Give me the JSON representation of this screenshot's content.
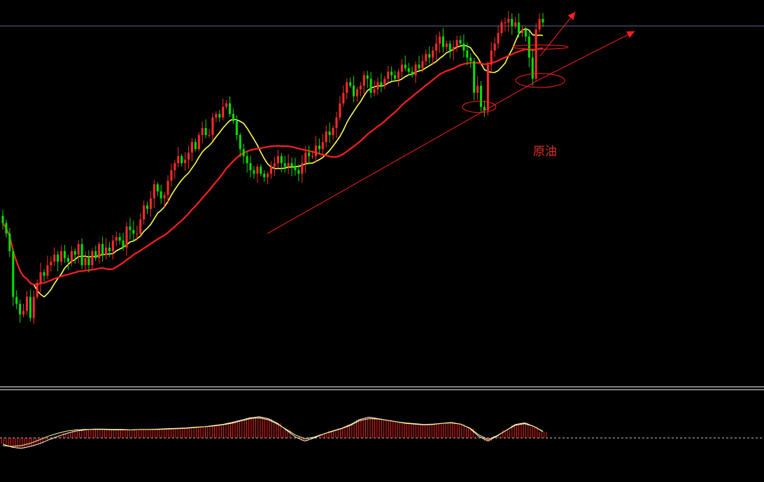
{
  "chart_data": {
    "type": "candlestick",
    "annotation": "原油",
    "colors": {
      "background": "#000000",
      "up": "#ff2a2a",
      "down": "#00e000",
      "ma_short": "#ffff55",
      "ma_long": "#ff2020",
      "annotation": "#e0302a",
      "separator": "#ffffff",
      "ref_line": "#5a6e8a",
      "indicator_line_a": "#ffffff",
      "indicator_line_b": "#ffff88",
      "indicator_bar": "#ff2020",
      "zero_line": "#cccccc"
    },
    "price_range": [
      0,
      100
    ],
    "ref_level": 97,
    "closes": [
      41,
      38,
      33,
      20,
      18,
      15,
      16,
      20,
      14,
      20,
      24,
      27,
      26,
      29,
      30,
      32,
      30,
      33,
      31,
      30,
      33,
      32,
      35,
      29,
      31,
      29,
      33,
      31,
      35,
      32,
      34,
      33,
      36,
      37,
      36,
      34,
      40,
      39,
      38,
      38,
      42,
      46,
      45,
      48,
      52,
      50,
      48,
      49,
      53,
      56,
      58,
      60,
      58,
      59,
      61,
      64,
      62,
      66,
      68,
      66,
      66,
      71,
      72,
      71,
      74,
      75,
      72,
      70,
      66,
      62,
      60,
      58,
      56,
      55,
      57,
      55,
      54,
      55,
      57,
      58,
      60,
      58,
      57,
      58,
      57,
      56,
      55,
      58,
      61,
      60,
      60,
      63,
      62,
      64,
      67,
      66,
      68,
      71,
      75,
      78,
      81,
      80,
      77,
      79,
      80,
      83,
      82,
      78,
      79,
      81,
      80,
      82,
      84,
      83,
      82,
      84,
      86,
      85,
      84,
      83,
      86,
      85,
      87,
      89,
      88,
      90,
      92,
      94,
      91,
      92,
      90,
      91,
      93,
      92,
      90,
      88,
      87,
      78,
      80,
      74,
      73,
      86,
      90,
      92,
      95,
      98,
      98,
      99,
      97,
      98,
      95,
      96,
      94,
      88,
      82,
      96,
      99,
      98
    ]
  },
  "indicator_data": {
    "type": "macd",
    "histogram_range": [
      -1,
      1
    ],
    "histogram_series": [
      -0.16,
      -0.24,
      -0.27,
      -0.22,
      -0.15,
      -0.05,
      0.04,
      0.12,
      0.18,
      0.21,
      0.23,
      0.23,
      0.22,
      0.22,
      0.21,
      0.22,
      0.22,
      0.23,
      0.24,
      0.25,
      0.26,
      0.28,
      0.29,
      0.32,
      0.35,
      0.4,
      0.46,
      0.52,
      0.55,
      0.5,
      0.38,
      0.2,
      0.02,
      -0.08,
      0.0,
      0.1,
      0.18,
      0.25,
      0.35,
      0.48,
      0.54,
      0.5,
      0.46,
      0.42,
      0.38,
      0.36,
      0.34,
      0.35,
      0.38,
      0.4,
      0.36,
      0.25,
      0.04,
      -0.08,
      0.05,
      0.2,
      0.35,
      0.39,
      0.3,
      0.16
    ],
    "signal_series": [
      -0.2,
      -0.22,
      -0.2,
      -0.14,
      -0.05,
      0.05,
      0.12,
      0.18,
      0.21,
      0.22,
      0.22,
      0.22,
      0.21,
      0.21,
      0.21,
      0.22,
      0.22,
      0.22,
      0.23,
      0.24,
      0.25,
      0.27,
      0.29,
      0.31,
      0.34,
      0.38,
      0.44,
      0.5,
      0.52,
      0.47,
      0.36,
      0.22,
      0.07,
      -0.02,
      0.02,
      0.1,
      0.17,
      0.24,
      0.33,
      0.45,
      0.5,
      0.49,
      0.46,
      0.42,
      0.39,
      0.37,
      0.35,
      0.36,
      0.38,
      0.39,
      0.36,
      0.26,
      0.08,
      -0.04,
      0.06,
      0.2,
      0.33,
      0.37,
      0.3,
      0.17
    ]
  }
}
